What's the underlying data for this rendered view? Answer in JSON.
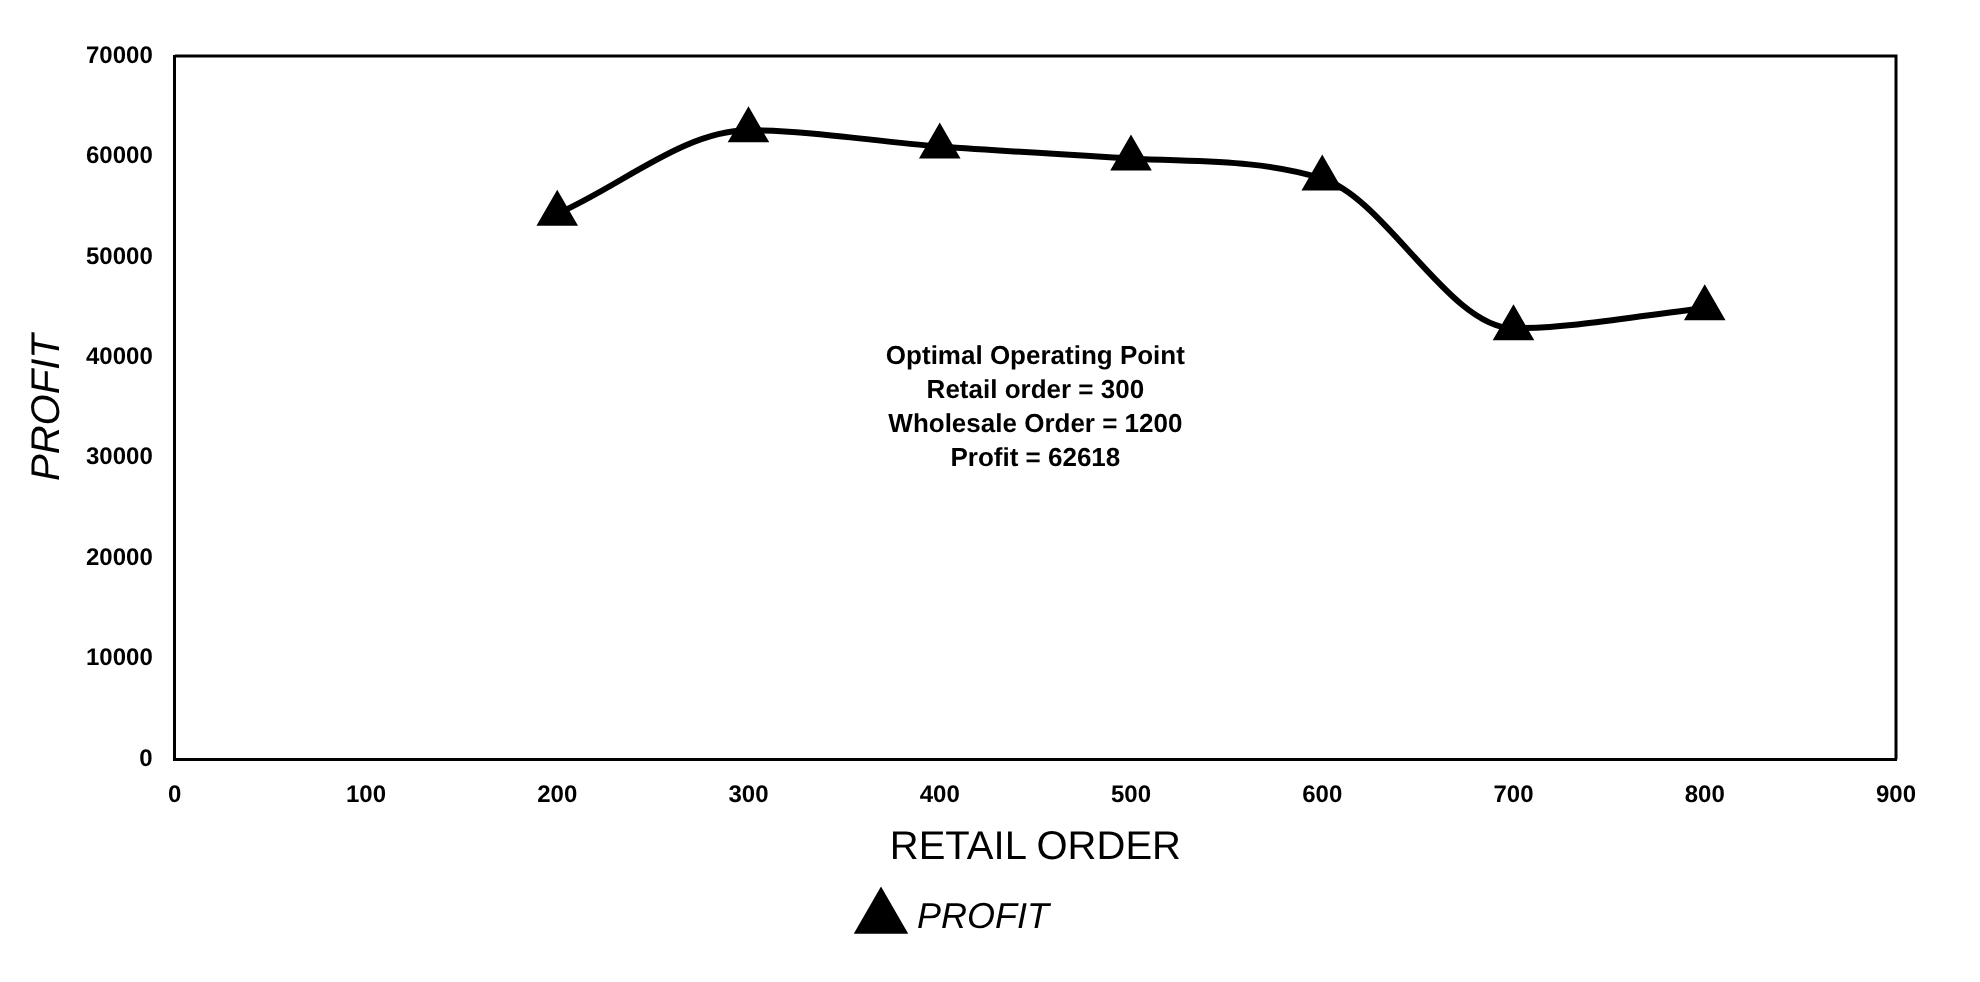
{
  "chart_data": {
    "type": "line",
    "xlabel": "RETAIL ORDER",
    "ylabel": "PROFIT",
    "x": [
      200,
      300,
      400,
      500,
      600,
      700,
      800
    ],
    "series": [
      {
        "name": "PROFIT",
        "color": "#000000",
        "values": [
          54300,
          62600,
          61000,
          59800,
          57800,
          42900,
          44900
        ]
      }
    ],
    "xlim": [
      0,
      900
    ],
    "xticks": [
      0,
      100,
      200,
      300,
      400,
      500,
      600,
      700,
      800,
      900
    ],
    "ylim": [
      0,
      70000
    ],
    "yticks": [
      0,
      10000,
      20000,
      30000,
      40000,
      50000,
      60000,
      70000
    ],
    "annotations": [
      "Optimal Operating Point",
      "Retail order = 300",
      "Wholesale Order = 1200",
      "Profit = 62618"
    ],
    "marker": "triangle",
    "line_style": "solid",
    "grid": false,
    "legend": "bottom"
  }
}
